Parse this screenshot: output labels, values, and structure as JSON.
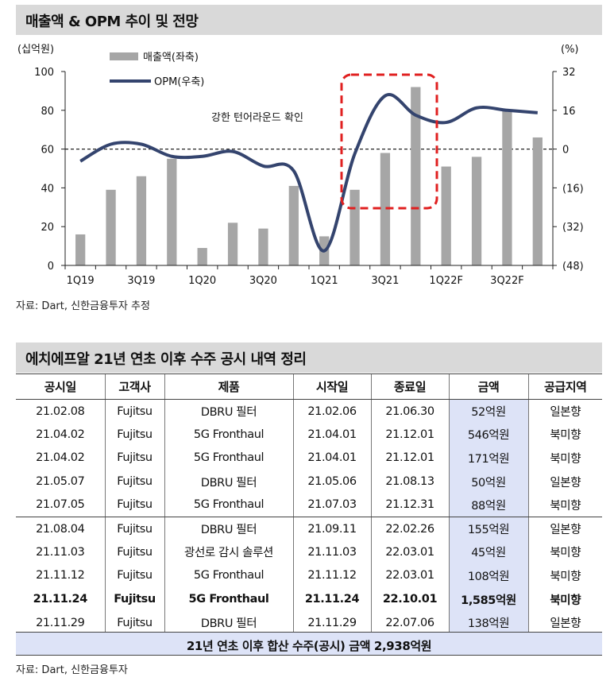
{
  "section1": {
    "title": "매출액 & OPM 추이 및 전망",
    "source": "자료: Dart, 신한금융투자 추정"
  },
  "chart_data": {
    "type": "bar+line",
    "left_unit": "(십억원)",
    "right_unit": "(%)",
    "left_axis": {
      "min": 0,
      "max": 100,
      "ticks": [
        "0",
        "20",
        "40",
        "60",
        "80",
        "100"
      ]
    },
    "right_axis": {
      "min": -48,
      "max": 32,
      "ticks": [
        "(48)",
        "(32)",
        "(16)",
        "0",
        "16",
        "32"
      ]
    },
    "categories": [
      "1Q19",
      "2Q19",
      "3Q19",
      "4Q19",
      "1Q20",
      "2Q20",
      "3Q20",
      "4Q20",
      "1Q21",
      "2Q21",
      "3Q21",
      "4Q21",
      "1Q22F",
      "2Q22F",
      "3Q22F",
      "4Q22F"
    ],
    "x_tick_labels": [
      "1Q19",
      "3Q19",
      "1Q20",
      "3Q20",
      "1Q21",
      "3Q21",
      "1Q22F",
      "3Q22F"
    ],
    "series": [
      {
        "name": "매출액(좌축)",
        "axis": "left",
        "kind": "bar",
        "color": "#a6a6a6",
        "values": [
          16,
          39,
          46,
          55,
          9,
          22,
          19,
          41,
          15,
          39,
          58,
          92,
          51,
          56,
          80,
          66
        ]
      },
      {
        "name": "OPM(우축)",
        "axis": "right",
        "kind": "line",
        "color": "#34446e",
        "values": [
          -5,
          2,
          2,
          -3,
          -3,
          -1,
          -7,
          -9,
          -42,
          -2,
          22,
          14,
          11,
          17,
          16,
          15
        ]
      }
    ],
    "annotation": "강한 턴어라운드 확인",
    "reference_line": {
      "axis": "right",
      "value": 0
    }
  },
  "section2": {
    "title": "에치에프알 21년 연초 이후 수주 공시 내역 정리",
    "headers": [
      "공시일",
      "고객사",
      "제품",
      "시작일",
      "종료일",
      "금액",
      "공급지역"
    ],
    "rows": [
      [
        "21.02.08",
        "Fujitsu",
        "DBRU 필터",
        "21.02.06",
        "21.06.30",
        "52억원",
        "일본향"
      ],
      [
        "21.04.02",
        "Fujitsu",
        "5G Fronthaul",
        "21.04.01",
        "21.12.01",
        "546억원",
        "북미향"
      ],
      [
        "21.04.02",
        "Fujitsu",
        "5G Fronthaul",
        "21.04.01",
        "21.12.01",
        "171억원",
        "북미향"
      ],
      [
        "21.05.07",
        "Fujitsu",
        "DBRU 필터",
        "21.05.06",
        "21.08.13",
        "50억원",
        "일본향"
      ],
      [
        "21.07.05",
        "Fujitsu",
        "5G Fronthaul",
        "21.07.03",
        "21.12.31",
        "88억원",
        "북미향"
      ],
      [
        "21.08.04",
        "Fujitsu",
        "DBRU 필터",
        "21.09.11",
        "22.02.26",
        "155억원",
        "일본향"
      ],
      [
        "21.11.03",
        "Fujitsu",
        "광선로 감시 솔루션",
        "21.11.03",
        "22.03.01",
        "45억원",
        "북미향"
      ],
      [
        "21.11.12",
        "Fujitsu",
        "5G Fronthaul",
        "21.11.12",
        "22.03.01",
        "108억원",
        "북미향"
      ],
      [
        "21.11.24",
        "Fujitsu",
        "5G Fronthaul",
        "21.11.24",
        "22.10.01",
        "1,585억원",
        "북미향"
      ],
      [
        "21.11.29",
        "Fujitsu",
        "DBRU 필터",
        "21.11.29",
        "22.07.06",
        "138억원",
        "일본향"
      ]
    ],
    "summary": "21년 연초 이후 합산 수주(공시) 금액 2,938억원",
    "source": "자료: Dart, 신한금융투자"
  }
}
